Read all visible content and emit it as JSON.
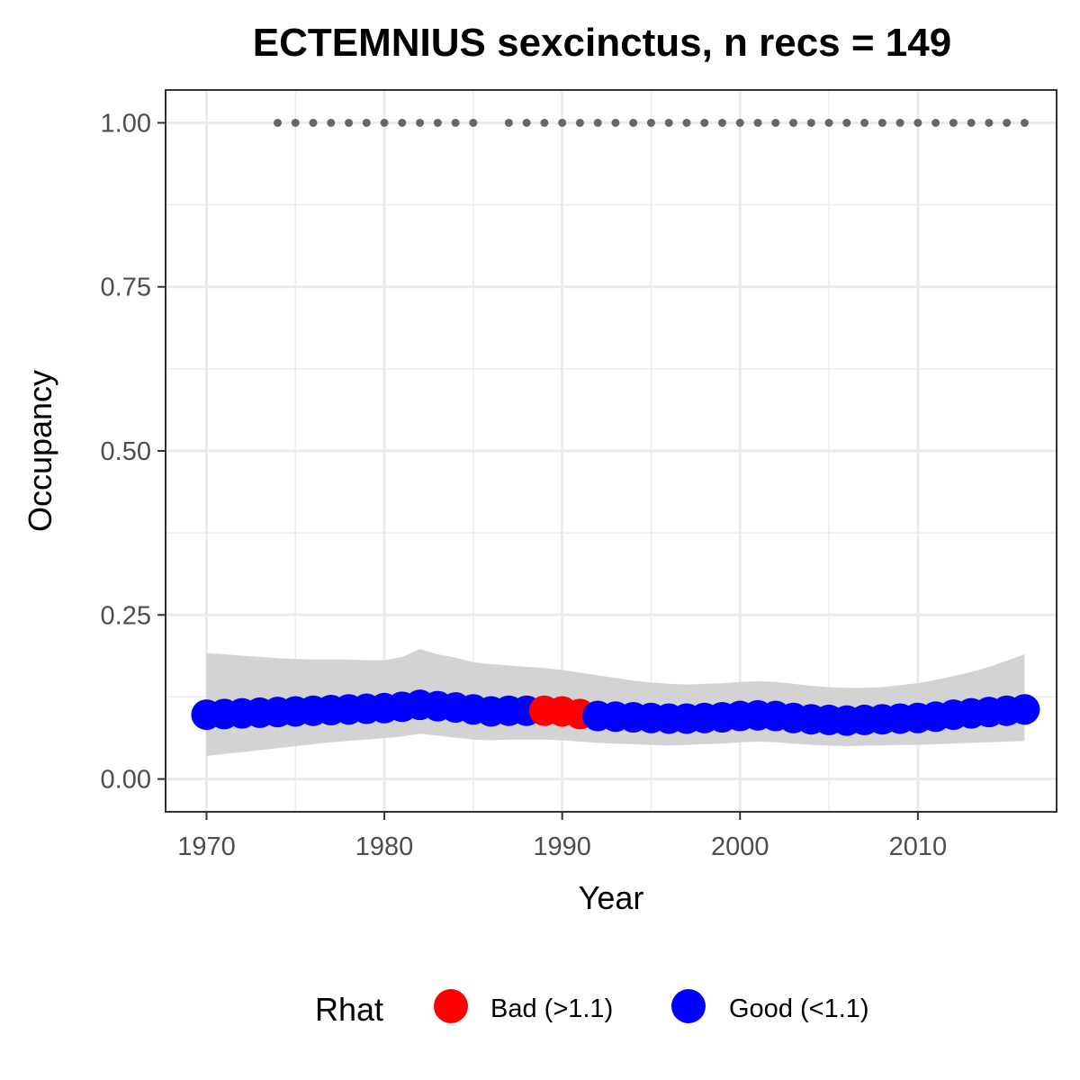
{
  "chart_data": {
    "type": "scatter",
    "title": "ECTEMNIUS sexcinctus, n recs = 149",
    "xlabel": "Year",
    "ylabel": "Occupancy",
    "xlim": [
      1967.7,
      2017.8
    ],
    "ylim": [
      -0.05,
      1.05
    ],
    "x_ticks": [
      1970,
      1980,
      1990,
      2000,
      2010
    ],
    "y_ticks": [
      0.0,
      0.25,
      0.5,
      0.75,
      1.0
    ],
    "y_tick_labels": [
      "0.00",
      "0.25",
      "0.50",
      "0.75",
      "1.00"
    ],
    "grid": true,
    "legend": {
      "title": "Rhat",
      "position": "bottom",
      "entries": [
        {
          "label": "Bad (>1.1)",
          "color": "#ff0000"
        },
        {
          "label": "Good (<1.1)",
          "color": "#0000ff"
        }
      ]
    },
    "colors": {
      "bad": "#ff0000",
      "good": "#0000ff",
      "band": "#d3d3d3",
      "record_dots": "#666666"
    },
    "years": [
      1970,
      1971,
      1972,
      1973,
      1974,
      1975,
      1976,
      1977,
      1978,
      1979,
      1980,
      1981,
      1982,
      1983,
      1984,
      1985,
      1986,
      1987,
      1988,
      1989,
      1990,
      1991,
      1992,
      1993,
      1994,
      1995,
      1996,
      1997,
      1998,
      1999,
      2000,
      2001,
      2002,
      2003,
      2004,
      2005,
      2006,
      2007,
      2008,
      2009,
      2010,
      2011,
      2012,
      2013,
      2014,
      2015,
      2016
    ],
    "occupancy": [
      0.098,
      0.099,
      0.1,
      0.101,
      0.102,
      0.103,
      0.104,
      0.105,
      0.106,
      0.107,
      0.108,
      0.11,
      0.113,
      0.111,
      0.109,
      0.106,
      0.103,
      0.104,
      0.104,
      0.104,
      0.103,
      0.099,
      0.096,
      0.095,
      0.094,
      0.093,
      0.092,
      0.092,
      0.093,
      0.094,
      0.096,
      0.097,
      0.096,
      0.093,
      0.091,
      0.09,
      0.089,
      0.09,
      0.091,
      0.092,
      0.093,
      0.095,
      0.098,
      0.1,
      0.102,
      0.104,
      0.106
    ],
    "lower": [
      0.035,
      0.038,
      0.041,
      0.044,
      0.047,
      0.05,
      0.053,
      0.056,
      0.058,
      0.06,
      0.062,
      0.065,
      0.069,
      0.066,
      0.063,
      0.06,
      0.059,
      0.06,
      0.06,
      0.06,
      0.059,
      0.057,
      0.055,
      0.054,
      0.053,
      0.052,
      0.051,
      0.052,
      0.053,
      0.054,
      0.056,
      0.057,
      0.056,
      0.054,
      0.052,
      0.051,
      0.05,
      0.051,
      0.051,
      0.052,
      0.052,
      0.053,
      0.054,
      0.055,
      0.056,
      0.057,
      0.058
    ],
    "upper": [
      0.192,
      0.19,
      0.188,
      0.186,
      0.184,
      0.183,
      0.182,
      0.182,
      0.182,
      0.181,
      0.181,
      0.186,
      0.198,
      0.19,
      0.185,
      0.178,
      0.175,
      0.173,
      0.171,
      0.169,
      0.166,
      0.162,
      0.158,
      0.154,
      0.15,
      0.147,
      0.145,
      0.144,
      0.145,
      0.146,
      0.148,
      0.149,
      0.148,
      0.145,
      0.142,
      0.14,
      0.139,
      0.139,
      0.14,
      0.143,
      0.146,
      0.151,
      0.157,
      0.163,
      0.171,
      0.18,
      0.19
    ],
    "rhat_status": [
      "good",
      "good",
      "good",
      "good",
      "good",
      "good",
      "good",
      "good",
      "good",
      "good",
      "good",
      "good",
      "good",
      "good",
      "good",
      "good",
      "good",
      "good",
      "good",
      "bad",
      "bad",
      "bad",
      "good",
      "good",
      "good",
      "good",
      "good",
      "good",
      "good",
      "good",
      "good",
      "good",
      "good",
      "good",
      "good",
      "good",
      "good",
      "good",
      "good",
      "good",
      "good",
      "good",
      "good",
      "good",
      "good",
      "good",
      "good"
    ],
    "record_years": [
      1974,
      1975,
      1976,
      1977,
      1978,
      1979,
      1980,
      1981,
      1982,
      1983,
      1984,
      1985,
      1987,
      1988,
      1989,
      1990,
      1991,
      1992,
      1993,
      1994,
      1995,
      1996,
      1997,
      1998,
      1999,
      2000,
      2001,
      2002,
      2003,
      2004,
      2005,
      2006,
      2007,
      2008,
      2009,
      2010,
      2011,
      2012,
      2013,
      2014,
      2015,
      2016
    ],
    "record_value": 1.0
  }
}
